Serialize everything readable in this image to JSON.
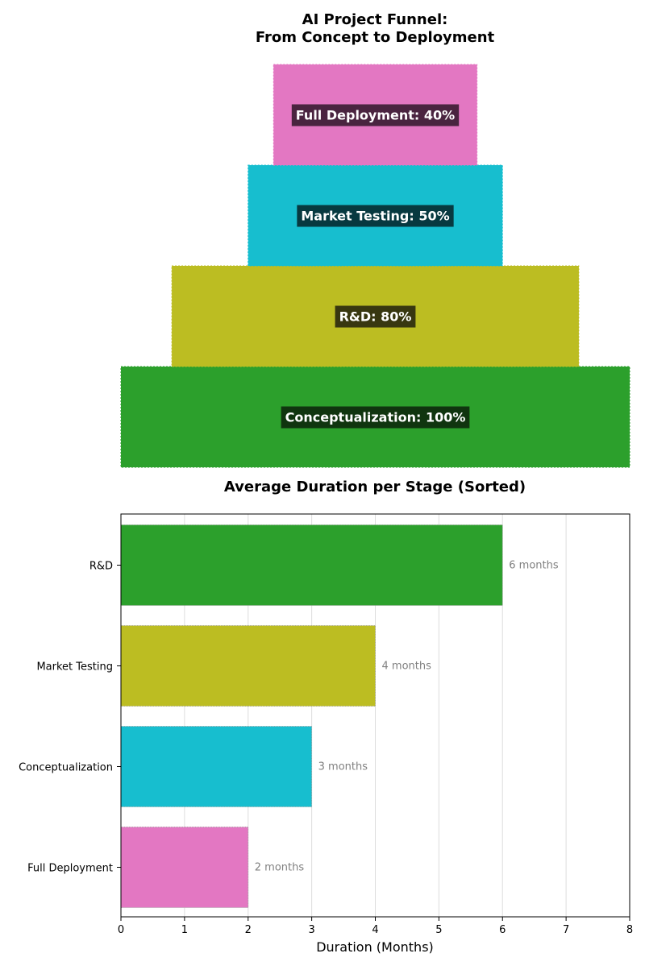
{
  "chart_data": [
    {
      "type": "funnel",
      "title": "AI Project Funnel:\nFrom Concept to Deployment",
      "stages": [
        "Conceptualization",
        "R&D",
        "Market Testing",
        "Full Deployment"
      ],
      "values": [
        100,
        80,
        50,
        40
      ],
      "value_suffix": "%",
      "colors": [
        "#2ca02c",
        "#bcbd22",
        "#17becf",
        "#e377c2"
      ],
      "label_bg_colors": [
        "#10350f",
        "#383710",
        "#073940",
        "#4a2440"
      ]
    },
    {
      "type": "bar",
      "orientation": "horizontal",
      "title": "Average Duration per Stage (Sorted)",
      "categories": [
        "R&D",
        "Market Testing",
        "Conceptualization",
        "Full Deployment"
      ],
      "values": [
        6,
        4,
        3,
        2
      ],
      "data_label_suffix": " months",
      "colors": [
        "#2ca02c",
        "#bcbd22",
        "#17becf",
        "#e377c2"
      ],
      "xlabel": "Duration (Months)",
      "ylabel": "",
      "xlim": [
        0,
        8
      ],
      "xticks": [
        0,
        1,
        2,
        3,
        4,
        5,
        6,
        7,
        8
      ],
      "grid": true
    }
  ]
}
